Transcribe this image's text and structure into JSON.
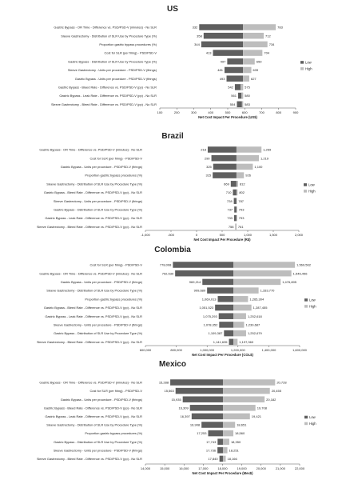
{
  "figure": {
    "legend_low": "Low",
    "legend_high": "High",
    "colors": {
      "low": "#5f5f5f",
      "high": "#bdbdbd",
      "axis": "#555555",
      "text": "#222222"
    }
  },
  "chart_data": [
    {
      "type": "bar",
      "subtype": "tornado",
      "title": "US",
      "xlabel": "Net Cost Impact Per Procedure (US$)",
      "xlim": [
        100,
        900
      ],
      "ticks": [
        100,
        200,
        300,
        400,
        500,
        600,
        700,
        800,
        900
      ],
      "tick_labels": [
        "100",
        "200",
        "300",
        "400",
        "500",
        "600",
        "700",
        "800",
        "900"
      ],
      "base": 590,
      "legend": "right",
      "categories": [
        "Gastric Bypass - OR Time - Difference vs. PSD/PSD-V (minutes) - No SLR",
        "Sleeve Gastrectomy - Distribution of SLR Use by Procedure Type (%)",
        "Proportion gastric bypass procedures (%)",
        "Cost for SLR (per firing) - PSD/PSD-V",
        "Gastric Bypass - Distribution of SLR Use by Procedure Type (%)",
        "Sleeve Gastrectomy - Units per procedure - PSD/PSD-V (firings)",
        "Gastric Bypass - Units per procedure - PSD/PSD-V (firings)",
        "Gastric Bypass - Bleed Rate - Difference vs. PSD/PSD-V (pp) - No SLR",
        "Gastric Bypass - Leak Rate - Difference vs. PSD/PSD-V (pp) - No SLR",
        "Sleeve Gastrectomy - Bleed Rate - Difference vs. PSD/PSD-V (pp) - No SLR"
      ],
      "series": [
        {
          "name": "Low",
          "values": [
            332,
            358,
            344,
            413,
            497,
            481,
            493,
            542,
            561,
            554
          ],
          "labels": [
            "332",
            "358",
            "344",
            "413",
            "497",
            "481",
            "493",
            "542",
            "561",
            "554"
          ]
        },
        {
          "name": "High",
          "values": [
            783,
            712,
            734,
            704,
            659,
            639,
            627,
            575,
            580,
            583
          ],
          "labels": [
            "783",
            "712",
            "734",
            "704",
            "659",
            "639",
            "627",
            "575",
            "580",
            "583"
          ]
        }
      ]
    },
    {
      "type": "bar",
      "subtype": "tornado",
      "title": "Brazil",
      "xlabel": "Net Cost Impact Per Procedure (R$)",
      "xlim": [
        -1000,
        2000
      ],
      "ticks": [
        -1000,
        -500,
        0,
        500,
        1000,
        1500,
        2000
      ],
      "tick_labels": [
        "-1,000",
        "-500",
        "0",
        "500",
        "1,000",
        "1,500",
        "2,000"
      ],
      "base": 780,
      "legend": "right",
      "categories": [
        "Gastric Bypass - OR Time - Difference vs. PSD/PSD-V (minutes) - No SLR",
        "Cost for SLR (per firing) - PSD/PSD-V",
        "Gastric Bypass - Units per procedure - PSD/PSD-V (firings)",
        "Proportion gastric bypass procedures (%)",
        "Sleeve Gastrectomy - Distribution of SLR Use by Procedure Type (%)",
        "Gastric Bypass - Bleed Rate - Difference vs. PSD/PSD-V (pp) - No SLR",
        "Sleeve Gastrectomy - Units per procedure - PSD/PSD-V (firings)",
        "Gastric Bypass - Distribution of SLR Use by Procedure Type (%)",
        "Gastric Bypass - Leak Rate - Difference vs. PSD/PSD-V (pp) - No SLR",
        "Sleeve Gastrectomy - Bleed Rate - Difference vs. PSD/PSD-V (pp) - No SLR"
      ],
      "series": [
        {
          "name": "Low",
          "values": [
            218,
            290,
            325,
            315,
            669,
            710,
            728,
            737,
            733,
            758
          ],
          "labels": [
            "218",
            "290",
            "325",
            "315",
            "669",
            "710",
            "728",
            "737",
            "733",
            "758"
          ]
        },
        {
          "name": "High",
          "values": [
            1269,
            1219,
            1100,
            926,
            812,
            802,
            787,
            793,
            793,
            761
          ],
          "labels": [
            "1,269",
            "1,219",
            "1,100",
            "926",
            "812",
            "802",
            "787",
            "793",
            "793",
            "761"
          ]
        }
      ]
    },
    {
      "type": "bar",
      "subtype": "tornado",
      "title": "Colombia",
      "xlabel": "Net Cost Impact Per Procedure (COL$)",
      "xlim": [
        600000,
        1600000
      ],
      "ticks": [
        600000,
        800000,
        1000000,
        1200000,
        1400000,
        1600000
      ],
      "tick_labels": [
        "600,000",
        "800,000",
        "1,000,000",
        "1,200,000",
        "1,400,000",
        "1,600,000"
      ],
      "base": 1170000,
      "legend": "right",
      "categories": [
        "Cost for SLR (per firing) - PSD/PSD-V",
        "Gastric Bypass - OR Time - Difference vs. PSD/PSD-V (minutes) - No SLR",
        "Gastric Bypass - Units per procedure - PSD/PSD-V (firings)",
        "Sleeve Gastrectomy - Distribution of SLR Use by Procedure Type (%)",
        "Proportion gastric bypass procedures (%)",
        "Gastric Bypass - Bleed Rate - Difference vs. PSD/PSD-V (pp) - No SLR",
        "Gastric Bypass - Leak Rate - Difference vs. PSD/PSD-V (pp) - No SLR",
        "Sleeve Gastrectomy - Units per procedure - PSD/PSD-V (firings)",
        "Gastric Bypass - Distribution of SLR Use by Procedure Type (%)",
        "Sleeve Gastrectomy - Bleed Rate - Difference vs. PSD/PSD-V (pp) - No SLR"
      ],
      "series": [
        {
          "name": "Low",
          "values": [
            778008,
            792539,
            969214,
            999689,
            1069013,
            1051523,
            1075293,
            1078352,
            1109387,
            1141635
          ],
          "labels": [
            "778,008",
            "792,539",
            "969,214",
            "999,689",
            "1,069,013",
            "1,051,523",
            "1,075,293",
            "1,078,352",
            "1,109,387",
            "1,141,635"
          ]
        },
        {
          "name": "High",
          "values": [
            1569562,
            1546456,
            1476805,
            1333770,
            1265304,
            1287455,
            1252618,
            1239687,
            1252679,
            1197360
          ],
          "labels": [
            "1,569,562",
            "1,546,456",
            "1,476,805",
            "1,333,770",
            "1,265,304",
            "1,287,455",
            "1,252,618",
            "1,239,687",
            "1,252,679",
            "1,197,360"
          ]
        }
      ]
    },
    {
      "type": "bar",
      "subtype": "tornado",
      "title": "Mexico",
      "xlabel": "Net Cost Impact Per Procedure (Mex$)",
      "xlim": [
        14000,
        22000
      ],
      "ticks": [
        14000,
        15000,
        16000,
        17000,
        18000,
        19000,
        20000,
        21000,
        22000
      ],
      "tick_labels": [
        "14,000",
        "15,000",
        "16,000",
        "17,000",
        "18,000",
        "19,000",
        "20,000",
        "21,000",
        "22,000"
      ],
      "base": 18020,
      "legend": "right",
      "categories": [
        "Gastric Bypass - OR Time - Difference vs. PSD/PSD-V (minutes) - No SLR",
        "Cost for SLR (per firing) - PSD/PSD-V",
        "Gastric Bypass - Units per procedure - PSD/PSD-V (firings)",
        "Gastric Bypass - Bleed Rate - Difference vs. PSD/PSD-V (pp) - No SLR",
        "Gastric Bypass - Leak Rate - Difference vs. PSD/PSD-V (pp) - No SLR",
        "Sleeve Gastrectomy - Distribution of SLR Use by Procedure Type (%)",
        "Proportion gastric bypass procedures (%)",
        "Gastric Bypass - Distribution of SLR Use by Procedure Type (%)",
        "Sleeve Gastrectomy - Units per procedure - PSD/PSD-V (firings)",
        "Sleeve Gastrectomy - Bleed Rate - Difference vs. PSD/PSD-V (pp) - No SLR"
      ],
      "series": [
        {
          "name": "Low",
          "values": [
            15288,
            15563,
            15935,
            16309,
            16397,
            16908,
            17253,
            17743,
            17736,
            17840
          ],
          "labels": [
            "15,288",
            "15,563",
            "15,935",
            "16,309",
            "16,397",
            "16,908",
            "17,253",
            "17,743",
            "17,736",
            "17,840"
          ]
        },
        {
          "name": "High",
          "values": [
            20728,
            20455,
            20182,
            19708,
            19421,
            18651,
            18560,
            18350,
            18251,
            18166
          ],
          "labels": [
            "20,728",
            "20,455",
            "20,182",
            "19,708",
            "19,421",
            "18,651",
            "18,560",
            "18,350",
            "18,251",
            "18,166"
          ]
        }
      ]
    }
  ]
}
